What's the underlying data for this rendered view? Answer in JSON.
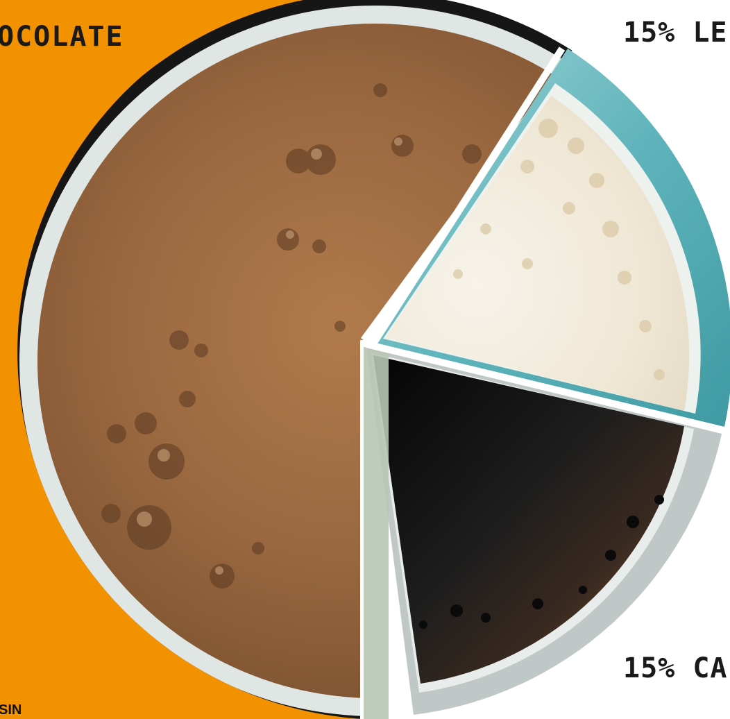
{
  "labels": {
    "chocolate": "OCOLATE",
    "lait": "15% LE",
    "cafe": "15% CA",
    "corner": "SIN"
  },
  "colors": {
    "orange_background": "#f39200",
    "cup_rim": "#161616",
    "cup_inner_rim": "#dfe6e3",
    "chocolate_foam": "#9a6840",
    "milk": "#f3ede0",
    "milk_cup_rim": "#5fb4bb",
    "coffee": "#0d0d0d",
    "coffee_crema": "#a76a34",
    "separator": "#ffffff"
  },
  "slices": [
    {
      "name": "chocolate",
      "icon": "chocolate-foam-slice"
    },
    {
      "name": "milk",
      "icon": "milk-slice"
    },
    {
      "name": "coffee",
      "icon": "coffee-slice"
    }
  ]
}
